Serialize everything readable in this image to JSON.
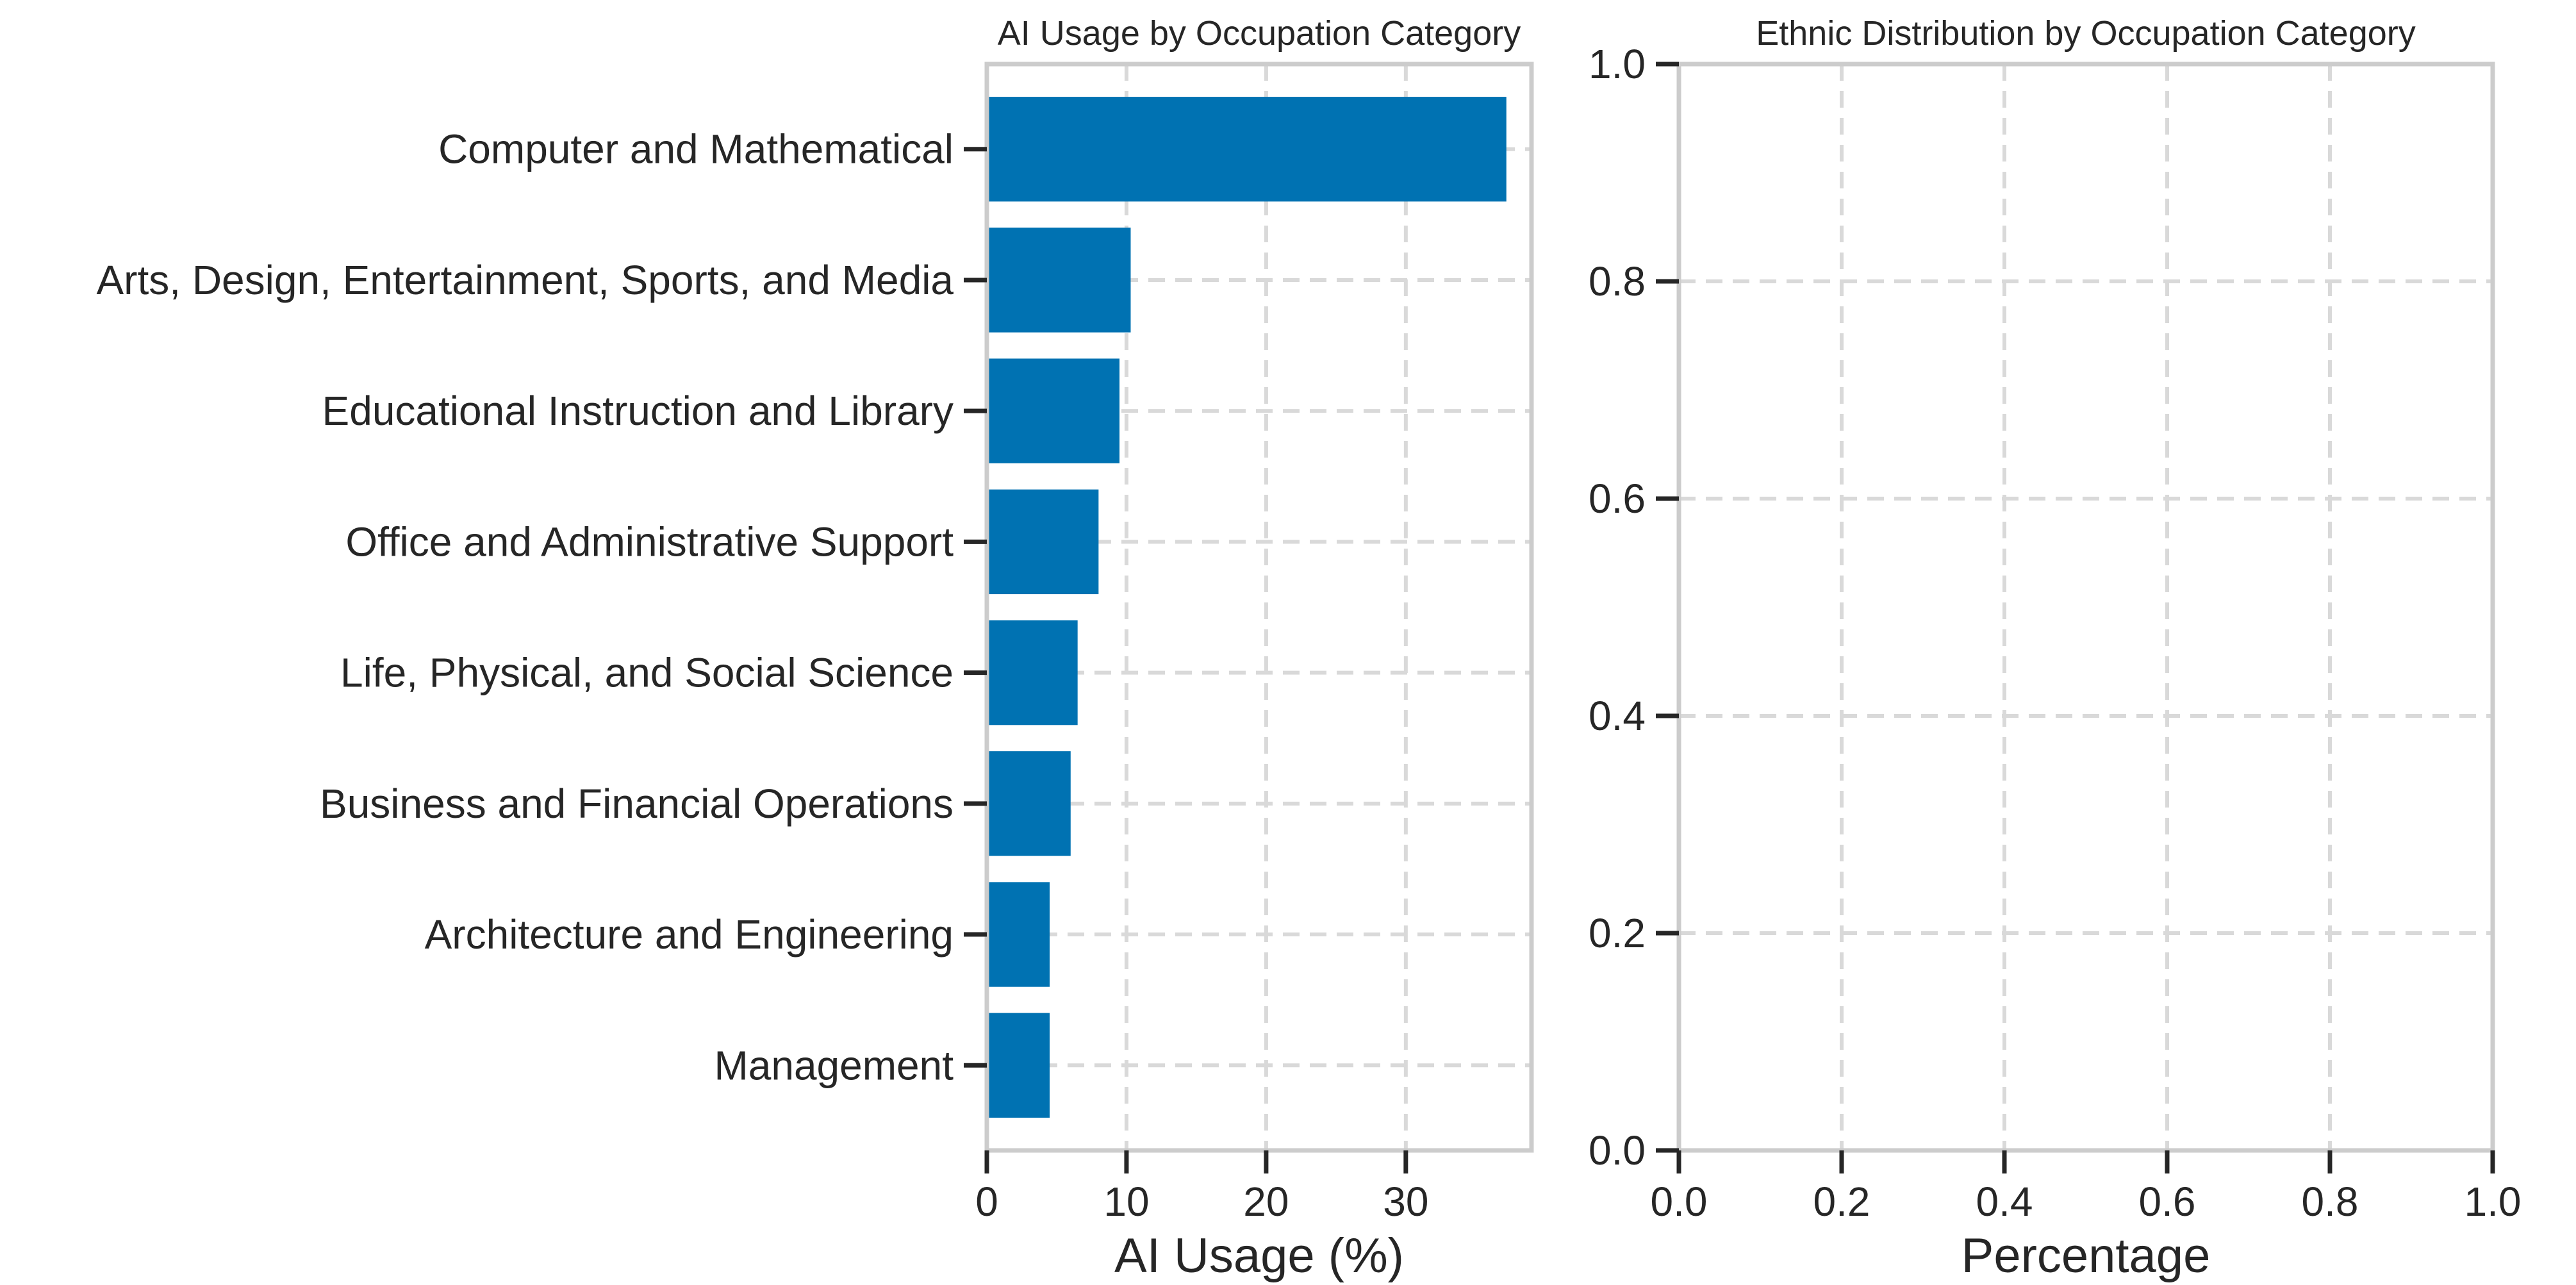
{
  "chart_data": [
    {
      "type": "bar",
      "orientation": "horizontal",
      "title": "AI Usage by Occupation Category",
      "xlabel": "AI Usage (%)",
      "ylabel": "",
      "categories": [
        "Management",
        "Architecture and Engineering",
        "Business and Financial Operations",
        "Life, Physical, and Social Science",
        "Office and Administrative Support",
        "Educational Instruction and Library",
        "Arts, Design, Entertainment, Sports, and Media",
        "Computer and Mathematical"
      ],
      "values": [
        4.5,
        4.5,
        6.0,
        6.5,
        8.0,
        9.5,
        10.3,
        37.2
      ],
      "xlim": [
        0,
        39
      ],
      "xticks": [
        0,
        10,
        20,
        30
      ],
      "bar_color": "#0072b2",
      "grid": true
    },
    {
      "type": "bar",
      "orientation": "horizontal",
      "title": "Ethnic Distribution by Occupation Category",
      "xlabel": "Percentage",
      "ylabel": "",
      "categories": [],
      "series": [],
      "xlim": [
        0,
        1
      ],
      "ylim": [
        0,
        1
      ],
      "xticks": [
        0.0,
        0.2,
        0.4,
        0.6,
        0.8,
        1.0
      ],
      "yticks": [
        0.0,
        0.2,
        0.4,
        0.6,
        0.8,
        1.0
      ],
      "grid": true
    }
  ]
}
